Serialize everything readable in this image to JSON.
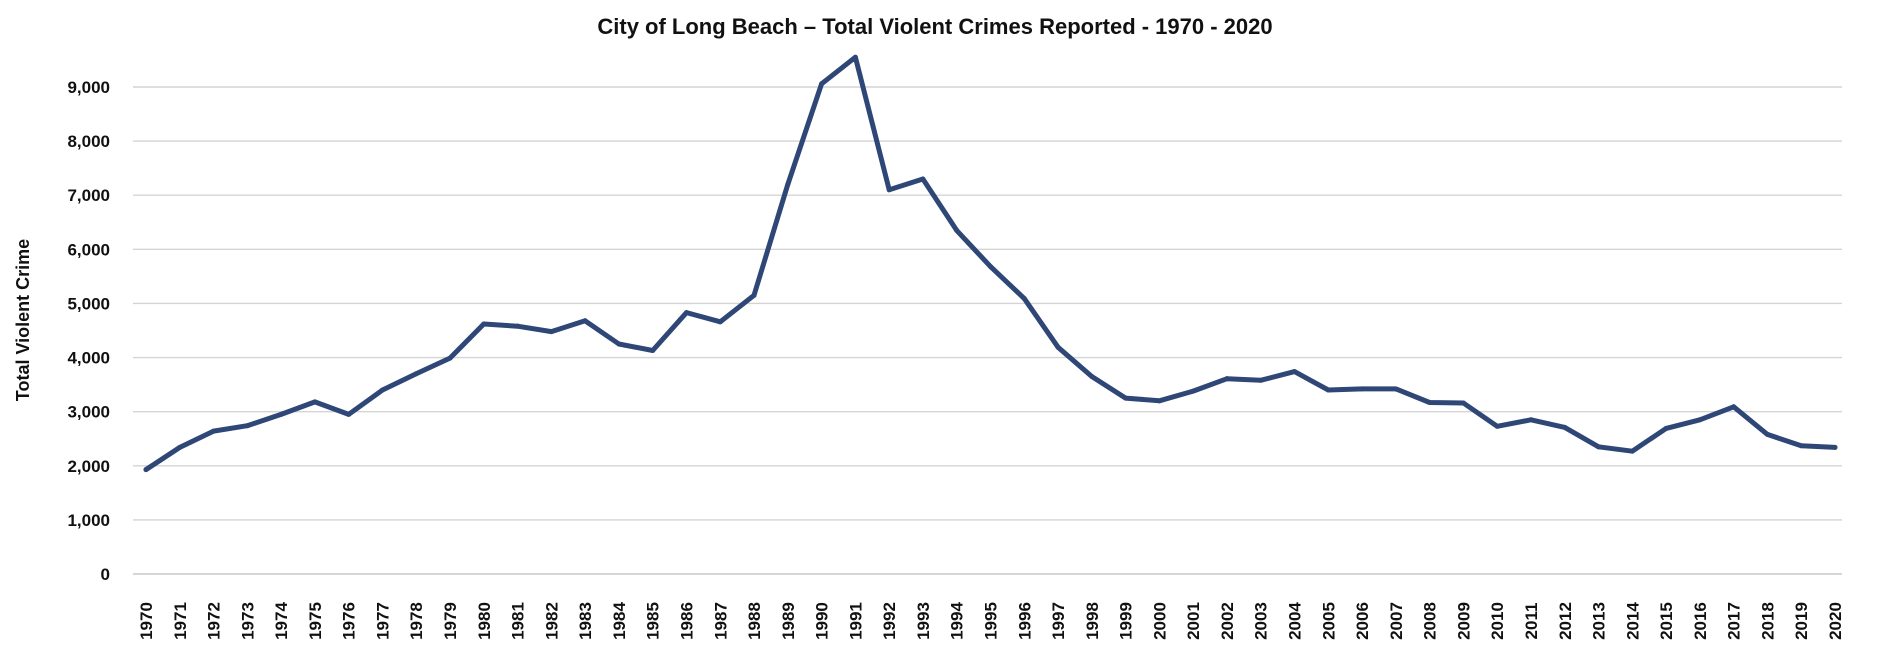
{
  "chart_data": {
    "type": "line",
    "title": "City of Long Beach – Total Violent Crimes Reported - 1970 - 2020",
    "xlabel": "",
    "ylabel": "Total Violent Crime",
    "ylim": [
      0,
      9000
    ],
    "yticks": [
      "0",
      "1,000",
      "2,000",
      "3,000",
      "4,000",
      "5,000",
      "6,000",
      "7,000",
      "8,000",
      "9,000"
    ],
    "grid": true,
    "legend": "none",
    "categories": [
      "1970",
      "1971",
      "1972",
      "1973",
      "1974",
      "1975",
      "1976",
      "1977",
      "1978",
      "1979",
      "1980",
      "1981",
      "1982",
      "1983",
      "1984",
      "1985",
      "1986",
      "1987",
      "1988",
      "1989",
      "1990",
      "1991",
      "1992",
      "1993",
      "1994",
      "1995",
      "1996",
      "1997",
      "1998",
      "1999",
      "2000",
      "2001",
      "2002",
      "2003",
      "2004",
      "2005",
      "2006",
      "2007",
      "2008",
      "2009",
      "2010",
      "2011",
      "2012",
      "2013",
      "2014",
      "2015",
      "2016",
      "2017",
      "2018",
      "2019",
      "2020"
    ],
    "series": [
      {
        "color": "#2f4777",
        "values": [
          1930,
          2340,
          2640,
          2740,
          2950,
          3180,
          2950,
          3400,
          3700,
          3990,
          4620,
          4580,
          4480,
          4680,
          4250,
          4130,
          4830,
          4660,
          5150,
          7200,
          9060,
          9550,
          7100,
          7300,
          6350,
          5680,
          5090,
          4190,
          3650,
          3250,
          3200,
          3380,
          3610,
          3580,
          3740,
          3400,
          3420,
          3420,
          3170,
          3160,
          2730,
          2850,
          2710,
          2350,
          2270,
          2690,
          2850,
          3090,
          2580,
          2370,
          2340
        ]
      }
    ]
  }
}
